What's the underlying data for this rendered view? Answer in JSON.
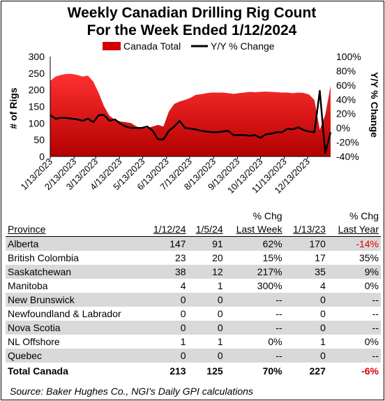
{
  "title_line1": "Weekly Canadian Drilling Rig Count",
  "title_line2": "For the Week Ended 1/12/2024",
  "chart_data": {
    "type": "area+line",
    "legend": [
      "Canada Total",
      "Y/Y % Change"
    ],
    "legend_position": "top",
    "ylabel_left": "# of Rigs",
    "ylabel_right": "Y/Y % Change",
    "ylim_left": [
      0,
      300
    ],
    "yticks_left": [
      "0",
      "50",
      "100",
      "150",
      "200",
      "250",
      "300"
    ],
    "ylim_right": [
      -40,
      100
    ],
    "yticks_right": [
      "-40%",
      "-20%",
      "0%",
      "20%",
      "40%",
      "60%",
      "80%",
      "100%"
    ],
    "xticks": [
      "1/13/2023",
      "2/13/2023",
      "3/13/2023",
      "4/13/2023",
      "5/13/2023",
      "6/13/2023",
      "7/13/2023",
      "8/13/2023",
      "9/13/2023",
      "10/13/2023",
      "11/13/2023",
      "12/13/2023"
    ],
    "grid": false,
    "series": [
      {
        "name": "Canada Total",
        "kind": "area",
        "color": "#d40000",
        "x": [
          "2023-01-13",
          "2023-01-20",
          "2023-01-27",
          "2023-02-03",
          "2023-02-10",
          "2023-02-17",
          "2023-02-24",
          "2023-03-03",
          "2023-03-10",
          "2023-03-17",
          "2023-03-24",
          "2023-03-31",
          "2023-04-07",
          "2023-04-14",
          "2023-04-21",
          "2023-04-28",
          "2023-05-05",
          "2023-05-12",
          "2023-05-19",
          "2023-05-26",
          "2023-06-02",
          "2023-06-09",
          "2023-06-16",
          "2023-06-23",
          "2023-06-30",
          "2023-07-07",
          "2023-07-14",
          "2023-07-21",
          "2023-07-28",
          "2023-08-04",
          "2023-08-11",
          "2023-08-18",
          "2023-08-25",
          "2023-09-01",
          "2023-09-08",
          "2023-09-15",
          "2023-09-22",
          "2023-09-29",
          "2023-10-06",
          "2023-10-13",
          "2023-10-20",
          "2023-10-27",
          "2023-11-03",
          "2023-11-10",
          "2023-11-17",
          "2023-11-24",
          "2023-12-01",
          "2023-12-08",
          "2023-12-15",
          "2023-12-22",
          "2023-12-29",
          "2024-01-05",
          "2024-01-12"
        ],
        "values": [
          227,
          240,
          245,
          248,
          248,
          245,
          240,
          243,
          225,
          190,
          150,
          122,
          110,
          105,
          103,
          100,
          90,
          85,
          86,
          90,
          95,
          90,
          135,
          158,
          165,
          170,
          176,
          185,
          187,
          190,
          192,
          192,
          192,
          190,
          188,
          190,
          192,
          194,
          193,
          194,
          195,
          194,
          193,
          192,
          192,
          190,
          192,
          191,
          186,
          170,
          80,
          125,
          213
        ]
      },
      {
        "name": "Y/Y % Change",
        "kind": "line",
        "color": "#000000",
        "axis": "right",
        "x": [
          "2023-01-13",
          "2023-01-20",
          "2023-01-27",
          "2023-02-03",
          "2023-02-10",
          "2023-02-17",
          "2023-02-24",
          "2023-03-03",
          "2023-03-10",
          "2023-03-17",
          "2023-03-24",
          "2023-03-31",
          "2023-04-07",
          "2023-04-14",
          "2023-04-21",
          "2023-04-28",
          "2023-05-05",
          "2023-05-12",
          "2023-05-19",
          "2023-05-26",
          "2023-06-02",
          "2023-06-09",
          "2023-06-16",
          "2023-06-23",
          "2023-06-30",
          "2023-07-07",
          "2023-07-14",
          "2023-07-21",
          "2023-07-28",
          "2023-08-04",
          "2023-08-11",
          "2023-08-18",
          "2023-08-25",
          "2023-09-01",
          "2023-09-08",
          "2023-09-15",
          "2023-09-22",
          "2023-09-29",
          "2023-10-06",
          "2023-10-13",
          "2023-10-20",
          "2023-10-27",
          "2023-11-03",
          "2023-11-10",
          "2023-11-17",
          "2023-11-24",
          "2023-12-01",
          "2023-12-08",
          "2023-12-15",
          "2023-12-22",
          "2023-12-29",
          "2024-01-05",
          "2024-01-12"
        ],
        "values": [
          18,
          13,
          14,
          14,
          13,
          12,
          10,
          13,
          8,
          18,
          18,
          10,
          12,
          6,
          2,
          0,
          0,
          0,
          2,
          -4,
          -16,
          -16,
          -4,
          2,
          10,
          0,
          -1,
          -2,
          -4,
          -5,
          -6,
          -6,
          -5,
          -4,
          -10,
          -10,
          -10,
          -11,
          -10,
          -14,
          -9,
          -8,
          -6,
          -6,
          -1,
          -2,
          1,
          -3,
          -5,
          -6,
          52,
          -35,
          -6
        ]
      }
    ]
  },
  "table": {
    "header_top": [
      "",
      "",
      "",
      "% Chg",
      "",
      "% Chg"
    ],
    "columns": [
      "Province",
      "1/12/24",
      "1/5/24",
      "Last Week",
      "1/13/23",
      "Last Year"
    ],
    "rows": [
      {
        "cells": [
          "Alberta",
          "147",
          "91",
          "62%",
          "170",
          "-14%"
        ],
        "shade": true,
        "neg": true
      },
      {
        "cells": [
          "British Colombia",
          "23",
          "20",
          "15%",
          "17",
          "35%"
        ],
        "shade": false,
        "neg": false
      },
      {
        "cells": [
          "Saskatchewan",
          "38",
          "12",
          "217%",
          "35",
          "9%"
        ],
        "shade": true,
        "neg": false
      },
      {
        "cells": [
          "Manitoba",
          "4",
          "1",
          "300%",
          "4",
          "0%"
        ],
        "shade": false,
        "neg": false
      },
      {
        "cells": [
          "New Brunswick",
          "0",
          "0",
          "--",
          "0",
          "--"
        ],
        "shade": true,
        "neg": false
      },
      {
        "cells": [
          "Newfoundland & Labrador",
          "0",
          "0",
          "--",
          "0",
          "--"
        ],
        "shade": false,
        "neg": false
      },
      {
        "cells": [
          "Nova Scotia",
          "0",
          "0",
          "--",
          "0",
          "--"
        ],
        "shade": true,
        "neg": false
      },
      {
        "cells": [
          "NL Offshore",
          "1",
          "1",
          "0%",
          "1",
          "0%"
        ],
        "shade": false,
        "neg": false
      },
      {
        "cells": [
          "Quebec",
          "0",
          "0",
          "--",
          "0",
          "--"
        ],
        "shade": true,
        "neg": false
      }
    ],
    "total": {
      "cells": [
        "Total Canada",
        "213",
        "125",
        "70%",
        "227",
        "-6%"
      ],
      "neg": true
    }
  },
  "source": "Source: Baker Hughes Co., NGI's Daily GPI calculations"
}
